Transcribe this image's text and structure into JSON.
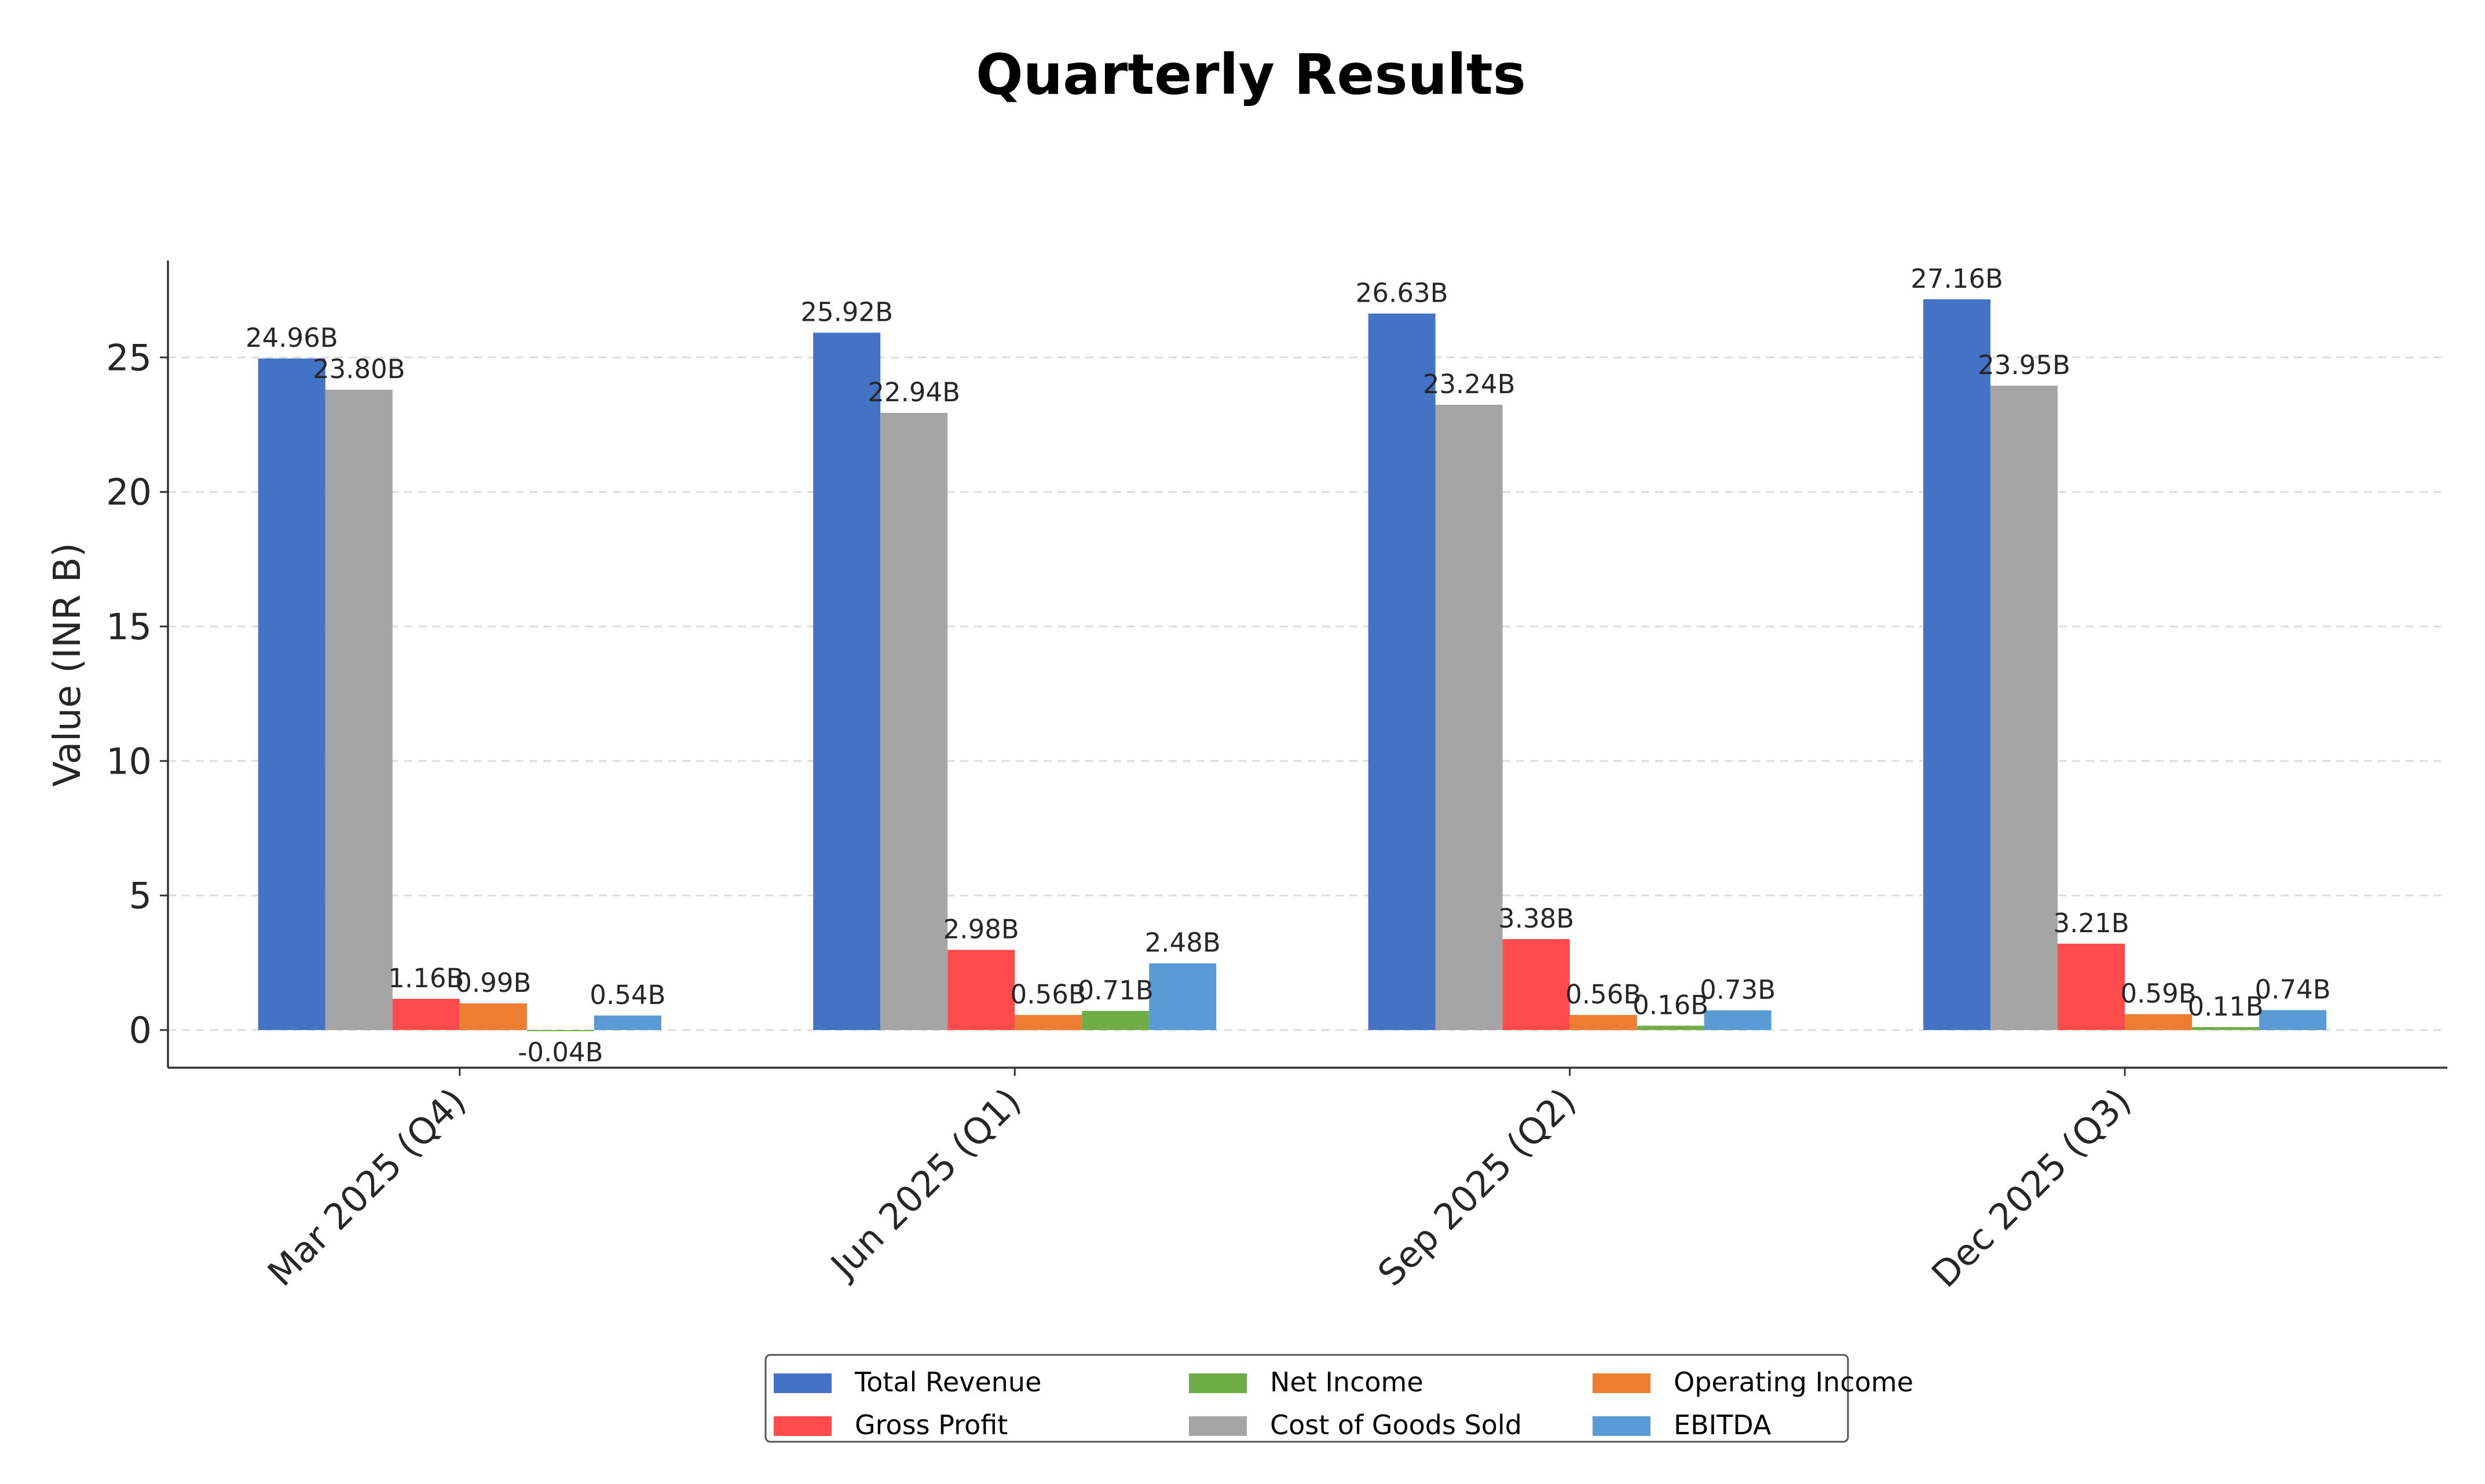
{
  "chart_data": {
    "type": "bar",
    "title": "Quarterly Results",
    "xlabel": "",
    "ylabel": "Value (INR B)",
    "ylim": [
      -1.4,
      28.6
    ],
    "yticks": [
      0,
      5,
      10,
      15,
      20,
      25
    ],
    "grid": true,
    "legend_position": "bottom-center",
    "categories": [
      "Mar 2025 (Q4)",
      "Jun 2025 (Q1)",
      "Sep 2025 (Q2)",
      "Dec 2025 (Q3)"
    ],
    "series": [
      {
        "name": "Total Revenue",
        "color": "#4472C4",
        "values": [
          24.96,
          25.92,
          26.63,
          27.16
        ],
        "labels": [
          "24.96B",
          "25.92B",
          "26.63B",
          "27.16B"
        ]
      },
      {
        "name": "Cost of Goods Sold",
        "color": "#A5A5A5",
        "values": [
          23.8,
          22.94,
          23.24,
          23.95
        ],
        "labels": [
          "23.80B",
          "22.94B",
          "23.24B",
          "23.95B"
        ]
      },
      {
        "name": "Gross Profit",
        "color": "#FF4B4B",
        "values": [
          1.16,
          2.98,
          3.38,
          3.21
        ],
        "labels": [
          "1.16B",
          "2.98B",
          "3.38B",
          "3.21B"
        ]
      },
      {
        "name": "Operating Income",
        "color": "#ED7D31",
        "values": [
          0.99,
          0.56,
          0.56,
          0.59
        ],
        "labels": [
          "0.99B",
          "0.56B",
          "0.56B",
          "0.59B"
        ]
      },
      {
        "name": "Net Income",
        "color": "#70AD47",
        "values": [
          -0.04,
          0.71,
          0.16,
          0.11
        ],
        "labels": [
          "-0.04B",
          "0.71B",
          "0.16B",
          "0.11B"
        ]
      },
      {
        "name": "EBITDA",
        "color": "#5B9BD5",
        "values": [
          0.54,
          2.48,
          0.73,
          0.74
        ],
        "labels": [
          "0.54B",
          "2.48B",
          "0.73B",
          "0.74B"
        ]
      }
    ],
    "legend_order": [
      0,
      2,
      4,
      1,
      3,
      5
    ]
  }
}
